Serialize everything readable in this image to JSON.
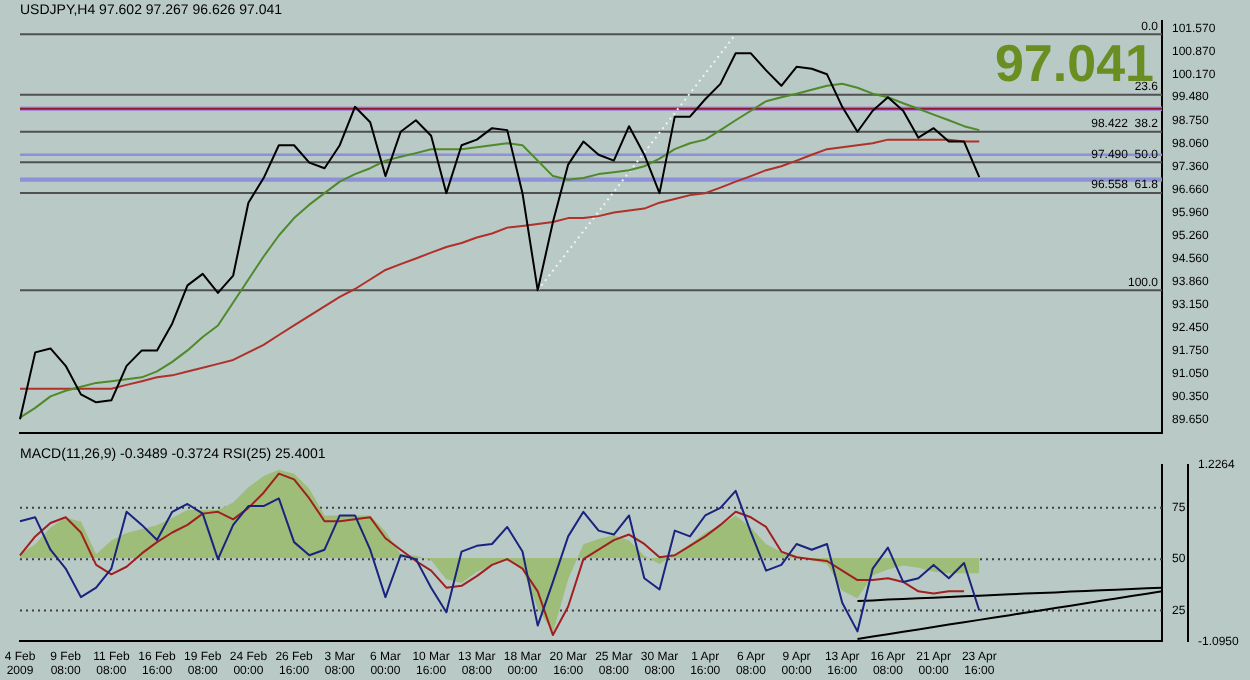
{
  "chart_data": [
    {
      "type": "line",
      "title": "USDJPY,H4 97.602 97.267 96.626 97.041",
      "tick_labels": "y",
      "marker": "none",
      "categories": [
        null,
        null,
        null,
        null,
        null,
        null,
        null,
        null,
        null,
        null,
        null,
        null,
        null,
        null,
        null,
        null,
        null,
        null,
        null,
        null,
        null,
        null,
        null,
        null,
        null,
        null,
        null,
        null,
        null,
        null,
        null,
        null,
        null,
        null,
        null,
        null,
        null,
        null,
        null,
        null,
        null,
        null,
        null,
        null,
        null,
        null,
        null,
        null,
        null,
        null,
        null,
        null,
        null,
        null,
        null,
        null,
        null,
        null,
        null,
        null,
        null,
        null,
        null,
        null,
        null,
        null,
        null,
        null,
        null,
        null,
        null,
        null,
        null,
        null,
        null,
        null
      ],
      "series": [
        {
          "color": "#000000",
          "values": [
            89.66,
            91.7,
            91.82,
            91.29,
            90.42,
            90.18,
            90.24,
            91.29,
            91.76,
            91.76,
            92.58,
            93.74,
            94.09,
            93.51,
            94.04,
            96.26,
            97.01,
            98.01,
            98.01,
            97.48,
            97.31,
            98.01,
            99.18,
            98.71,
            97.07,
            98.42,
            98.77,
            98.3,
            96.55,
            98.01,
            98.18,
            98.53,
            98.47,
            96.55,
            93.59,
            95.67,
            97.42,
            98.12,
            97.72,
            97.54,
            98.59,
            97.72,
            96.55,
            98.88,
            98.88,
            99.41,
            99.88,
            100.81,
            100.81,
            100.29,
            99.82,
            100.4,
            100.34,
            100.17,
            99.18,
            98.42,
            99.06,
            99.47,
            99.06,
            98.24,
            98.53,
            98.12,
            98.12,
            97.04,
            null,
            null,
            null,
            null,
            null,
            null,
            null,
            null,
            null,
            null,
            null,
            null
          ]
        },
        {
          "color": "#4f8a2a",
          "values": [
            89.71,
            90.01,
            90.36,
            90.53,
            90.65,
            90.77,
            90.82,
            90.88,
            90.94,
            91.12,
            91.41,
            91.76,
            92.17,
            92.52,
            93.22,
            93.92,
            94.62,
            95.26,
            95.79,
            96.2,
            96.55,
            96.9,
            97.13,
            97.31,
            97.54,
            97.66,
            97.77,
            97.89,
            97.89,
            97.89,
            97.95,
            98.01,
            98.07,
            98.01,
            97.54,
            97.07,
            96.96,
            97.01,
            97.13,
            97.19,
            97.25,
            97.37,
            97.6,
            97.89,
            98.07,
            98.18,
            98.47,
            98.77,
            99.06,
            99.35,
            99.47,
            99.58,
            99.7,
            99.82,
            99.88,
            99.76,
            99.58,
            99.47,
            99.29,
            99.12,
            98.94,
            98.77,
            98.59,
            98.47,
            null,
            null,
            null,
            null,
            null,
            null,
            null,
            null,
            null,
            null,
            null,
            null
          ]
        },
        {
          "color": "#b0302a",
          "values": [
            90.59,
            90.59,
            90.59,
            90.59,
            90.59,
            90.59,
            90.59,
            90.71,
            90.82,
            90.94,
            91.0,
            91.12,
            91.23,
            91.35,
            91.47,
            91.7,
            91.93,
            92.23,
            92.52,
            92.81,
            93.1,
            93.39,
            93.63,
            93.92,
            94.21,
            94.39,
            94.56,
            94.74,
            94.91,
            95.03,
            95.2,
            95.32,
            95.5,
            95.55,
            95.61,
            95.67,
            95.79,
            95.79,
            95.85,
            95.96,
            96.02,
            96.08,
            96.26,
            96.37,
            96.49,
            96.55,
            96.72,
            96.9,
            97.07,
            97.25,
            97.37,
            97.54,
            97.72,
            97.89,
            97.95,
            98.01,
            98.07,
            98.18,
            98.18,
            98.18,
            98.18,
            98.18,
            98.12,
            98.12,
            null,
            null,
            null,
            null,
            null,
            null,
            null,
            null,
            null,
            null,
            null,
            null
          ]
        },
        {
          "color": "#f4f4f4",
          "line_style": "dotted",
          "values": [
            null,
            null,
            null,
            null,
            null,
            null,
            null,
            null,
            null,
            null,
            null,
            null,
            null,
            null,
            null,
            null,
            null,
            null,
            null,
            null,
            null,
            null,
            null,
            null,
            null,
            null,
            null,
            null,
            null,
            null,
            null,
            null,
            null,
            null,
            93.59,
            94.19,
            94.79,
            95.39,
            95.99,
            96.59,
            97.19,
            97.79,
            98.39,
            98.99,
            99.59,
            100.19,
            100.79,
            101.39,
            null,
            null,
            null,
            null,
            null,
            null,
            null,
            null,
            null,
            null,
            null,
            null,
            null,
            null,
            null,
            null,
            null,
            null,
            null,
            null,
            null,
            null,
            null,
            null,
            null,
            null,
            null,
            null
          ]
        }
      ],
      "ylim": [
        89.25,
        101.8
      ],
      "yticks": [
        {
          "value": 89.65,
          "label": "89.650"
        },
        {
          "value": 90.35,
          "label": "90.350"
        },
        {
          "value": 91.05,
          "label": "91.050"
        },
        {
          "value": 91.75,
          "label": "91.750"
        },
        {
          "value": 92.45,
          "label": "92.450"
        },
        {
          "value": 93.15,
          "label": "93.150"
        },
        {
          "value": 93.86,
          "label": "93.860"
        },
        {
          "value": 94.56,
          "label": "94.560"
        },
        {
          "value": 95.26,
          "label": "95.260"
        },
        {
          "value": 95.96,
          "label": "95.960"
        },
        {
          "value": 96.66,
          "label": "96.660"
        },
        {
          "value": 97.36,
          "label": "97.360"
        },
        {
          "value": 98.06,
          "label": "98.060"
        },
        {
          "value": 98.75,
          "label": "98.750"
        },
        {
          "value": 99.48,
          "label": "99.480"
        },
        {
          "value": 100.17,
          "label": "100.170"
        },
        {
          "value": 100.87,
          "label": "100.870"
        },
        {
          "value": 101.57,
          "label": "101.570"
        }
      ],
      "bands": [
        {
          "axis": "y",
          "from": 99.05,
          "to": 99.19,
          "color": "#a98ad6"
        },
        {
          "axis": "y",
          "from": 96.9,
          "to": 97.03,
          "color": "#8e90d8"
        },
        {
          "axis": "y",
          "from": 97.68,
          "to": 97.76,
          "color": "#8e90d8"
        }
      ],
      "ref_lines": [
        {
          "axis": "y",
          "value": 99.12,
          "color": "#8b1a2b"
        },
        {
          "axis": "y",
          "value": 101.39,
          "color": "#505050"
        },
        {
          "axis": "y",
          "value": 99.55,
          "color": "#505050"
        },
        {
          "axis": "y",
          "value": 98.422,
          "color": "#505050"
        },
        {
          "axis": "y",
          "value": 97.49,
          "color": "#505050"
        },
        {
          "axis": "y",
          "value": 96.558,
          "color": "#505050"
        },
        {
          "axis": "y",
          "value": 93.59,
          "color": "#505050"
        }
      ],
      "annotations": [
        "97.041",
        {
          "text": "0.0",
          "y": 101.39
        },
        {
          "text": "23.6",
          "y": 99.55
        },
        {
          "text": "98.422  38.2",
          "y": 98.422
        },
        {
          "text": "97.490  50.0",
          "y": 97.49
        },
        {
          "text": "96.558  61.8",
          "y": 96.558
        },
        {
          "text": "100.0",
          "y": 93.59
        }
      ]
    },
    {
      "type": "line",
      "title": "MACD(11,26,9) -0.3489 -0.3724 RSI(25) 25.4001",
      "marker": "none",
      "categories": [
        "4 Feb 2009",
        null,
        null,
        "9 Feb 08:00",
        null,
        null,
        "11 Feb 08:00",
        null,
        null,
        "16 Feb 16:00",
        null,
        null,
        "19 Feb 08:00",
        null,
        null,
        "24 Feb 00:00",
        null,
        null,
        "26 Feb 16:00",
        null,
        null,
        "3 Mar 08:00",
        null,
        null,
        "6 Mar 00:00",
        null,
        null,
        "10 Mar 16:00",
        null,
        null,
        "13 Mar 08:00",
        null,
        null,
        "18 Mar 00:00",
        null,
        null,
        "20 Mar 16:00",
        null,
        null,
        "25 Mar 08:00",
        null,
        null,
        "30 Mar 08:00",
        null,
        null,
        "1 Apr 16:00",
        null,
        null,
        "6 Apr 08:00",
        null,
        null,
        "9 Apr 00:00",
        null,
        null,
        "13 Apr 16:00",
        null,
        null,
        "16 Apr 08:00",
        null,
        null,
        "21 Apr 00:00",
        null,
        null,
        "23 Apr 16:00",
        null,
        null,
        null,
        null,
        null,
        null,
        null,
        null,
        null,
        null,
        null,
        null
      ],
      "series": [
        {
          "color": "#1a237e",
          "values": [
            68.5,
            70.4,
            54.6,
            45.4,
            31.5,
            36.1,
            45.4,
            73.1,
            66.7,
            59.3,
            73.1,
            76.9,
            72.2,
            50.0,
            66.7,
            75.9,
            75.9,
            79.6,
            58.3,
            51.9,
            54.6,
            71.3,
            71.3,
            54.6,
            31.5,
            51.9,
            50.0,
            36.1,
            24.1,
            53.7,
            56.5,
            57.4,
            65.7,
            53.7,
            17.6,
            38.9,
            61.1,
            73.1,
            63.9,
            62.0,
            71.3,
            40.7,
            35.2,
            63.9,
            61.1,
            71.3,
            75.0,
            83.3,
            63.0,
            44.4,
            47.2,
            57.4,
            54.6,
            57.4,
            28.7,
            14.8,
            45.4,
            55.6,
            38.9,
            40.7,
            47.2,
            40.7,
            48.1,
            25.0,
            null,
            null,
            null,
            null,
            null,
            null,
            null,
            null,
            null,
            null,
            null,
            null
          ]
        },
        {
          "color": "#a02020",
          "values": [
            51.9,
            61.1,
            67.6,
            70.4,
            63.0,
            47.2,
            42.6,
            46.3,
            52.8,
            58.3,
            63.0,
            66.7,
            72.2,
            73.1,
            69.4,
            75.0,
            82.4,
            91.7,
            88.9,
            79.6,
            68.5,
            68.5,
            69.4,
            70.4,
            60.2,
            54.6,
            49.1,
            44.4,
            36.1,
            37.0,
            41.7,
            47.2,
            50.0,
            45.4,
            34.3,
            13.0,
            26.9,
            50.0,
            54.6,
            59.3,
            62.0,
            57.4,
            50.9,
            51.9,
            56.5,
            61.1,
            66.7,
            73.1,
            70.4,
            65.7,
            53.7,
            50.9,
            50.0,
            49.1,
            44.4,
            39.8,
            39.8,
            40.7,
            38.9,
            34.3,
            33.3,
            34.3,
            34.3,
            null,
            null,
            null,
            null,
            null,
            null,
            null,
            null,
            null,
            null,
            null,
            null,
            null
          ]
        },
        {
          "color": "#000000",
          "values": [
            null,
            null,
            null,
            null,
            null,
            null,
            null,
            null,
            null,
            null,
            null,
            null,
            null,
            null,
            null,
            null,
            null,
            null,
            null,
            null,
            null,
            null,
            null,
            null,
            null,
            null,
            null,
            null,
            null,
            null,
            null,
            null,
            null,
            null,
            null,
            null,
            null,
            null,
            null,
            null,
            null,
            null,
            null,
            null,
            null,
            null,
            null,
            null,
            null,
            null,
            null,
            null,
            null,
            null,
            null,
            29.6,
            29.9,
            30.3,
            30.6,
            30.9,
            31.2,
            31.6,
            31.9,
            32.2,
            32.5,
            32.9,
            33.2,
            33.5,
            33.8,
            34.2,
            34.5,
            34.8,
            35.1,
            35.5,
            35.8,
            36.1
          ]
        },
        {
          "color": "#000000",
          "values": [
            null,
            null,
            null,
            null,
            null,
            null,
            null,
            null,
            null,
            null,
            null,
            null,
            null,
            null,
            null,
            null,
            null,
            null,
            null,
            null,
            null,
            null,
            null,
            null,
            null,
            null,
            null,
            null,
            null,
            null,
            null,
            null,
            null,
            null,
            null,
            null,
            null,
            null,
            null,
            null,
            null,
            null,
            null,
            null,
            null,
            null,
            null,
            null,
            null,
            null,
            null,
            null,
            null,
            null,
            null,
            11.1,
            12.3,
            13.4,
            14.6,
            15.7,
            16.9,
            18.1,
            19.2,
            20.4,
            21.5,
            22.7,
            23.9,
            25.0,
            26.2,
            27.3,
            28.5,
            29.7,
            30.8,
            32.0,
            33.1,
            34.3
          ]
        },
        {
          "type": "area",
          "axis": "y2",
          "color": "#9dbd78",
          "values": [
            0.05,
            0.18,
            0.4,
            0.53,
            0.48,
            0.05,
            0.23,
            0.33,
            0.38,
            0.43,
            0.53,
            0.63,
            0.63,
            0.63,
            0.73,
            0.93,
            1.08,
            1.16,
            1.11,
            0.91,
            0.56,
            0.56,
            0.56,
            0.56,
            0.35,
            0.05,
            0.03,
            -0.03,
            -0.28,
            -0.33,
            -0.18,
            -0.1,
            0,
            -0.15,
            -0.66,
            -0.98,
            -0.28,
            0.18,
            0.25,
            0.3,
            0.23,
            0.03,
            -0.08,
            0.05,
            0.18,
            0.33,
            0.43,
            0.56,
            0.4,
            0.18,
            0.08,
            0.03,
            -0.03,
            -0.08,
            -0.43,
            -0.53,
            -0.23,
            -0.15,
            -0.1,
            -0.13,
            -0.18,
            -0.2,
            -0.2,
            -0.2,
            null,
            null,
            null,
            null,
            null,
            null,
            null,
            null,
            null,
            null,
            null,
            null
          ]
        }
      ],
      "ylim": [
        10,
        96
      ],
      "yticks": [
        25,
        50,
        75
      ],
      "y2lim": [
        -1.095,
        1.2264
      ],
      "y2ticks": [
        {
          "value": -1.095,
          "label": "-1.0950"
        },
        1.2264
      ],
      "ref_lines": [
        {
          "axis": "y",
          "value": 25,
          "color": "#404040",
          "line_style": "dotted"
        },
        {
          "axis": "y",
          "value": 50,
          "color": "#404040",
          "line_style": "dotted"
        },
        {
          "axis": "y",
          "value": 75,
          "color": "#404040",
          "line_style": "dotted"
        }
      ]
    }
  ]
}
